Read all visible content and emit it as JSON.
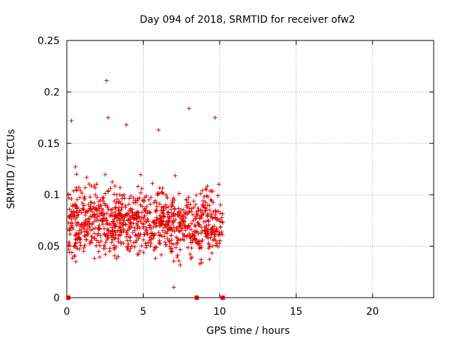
{
  "chart_data": {
    "type": "scatter",
    "title": "Day 094 of 2018, SRMTID for receiver ofw2",
    "xlabel": "GPS time / hours",
    "ylabel": "SRMTID / TECUs",
    "xlim": [
      0,
      24
    ],
    "ylim": [
      0,
      0.25
    ],
    "x_ticks": [
      0,
      5,
      10,
      15,
      20
    ],
    "x_tick_labels": [
      "0",
      "5",
      "10",
      "15",
      "20"
    ],
    "y_ticks": [
      0,
      0.05,
      0.1,
      0.15,
      0.2,
      0.25
    ],
    "y_tick_labels": [
      "0",
      "0.05",
      "0.1",
      "0.15",
      "0.2",
      "0.25"
    ],
    "grid": true,
    "marker": "+",
    "color": "#e00000",
    "series": [
      {
        "name": "SRMTID",
        "x_range": [
          0.1,
          10.2
        ],
        "y_range": [
          0.01,
          0.21
        ],
        "point_count": 1000,
        "notable_points": [
          {
            "x": 2.6,
            "y": 0.211
          },
          {
            "x": 8.0,
            "y": 0.184
          },
          {
            "x": 2.7,
            "y": 0.175
          },
          {
            "x": 9.7,
            "y": 0.175
          },
          {
            "x": 0.3,
            "y": 0.172
          },
          {
            "x": 3.9,
            "y": 0.168
          },
          {
            "x": 6.0,
            "y": 0.163
          },
          {
            "x": 7.0,
            "y": 0.01
          }
        ]
      }
    ],
    "zero_markers_x": [
      0.1,
      8.5,
      10.2
    ]
  }
}
